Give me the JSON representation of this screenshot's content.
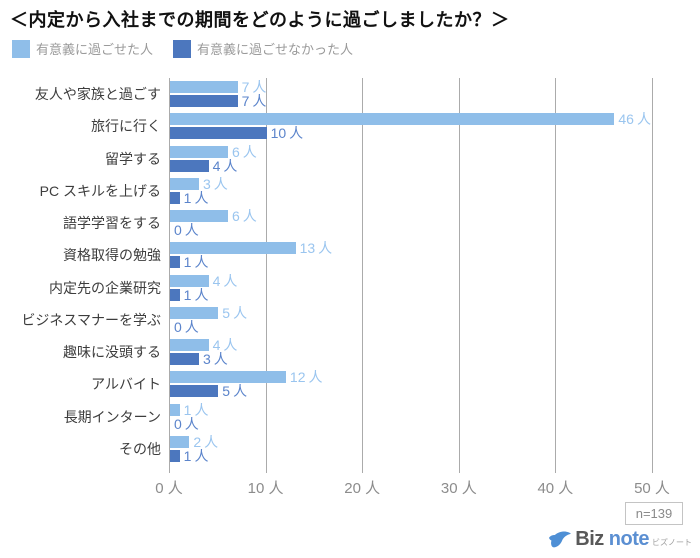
{
  "title": "＜内定から入社までの期間をどのように過ごしましたか？＞",
  "legend": [
    {
      "label": "有意義に過ごせた人",
      "color": "#8fbee9"
    },
    {
      "label": "有意義に過ごせなかった人",
      "color": "#4c77be"
    }
  ],
  "sample_size": "n=139",
  "logo": {
    "biz": "Biz",
    "note": "note",
    "subtext": "ビズノート",
    "bird_color": "#4e8fd5"
  },
  "colors": {
    "light_bar": "#8fbee9",
    "dark_bar": "#4c77be",
    "light_label": "#9ac5ef",
    "dark_label": "#5b84cb",
    "grid": "#ababab",
    "tick_text": "#8c8c8c",
    "category_text": "#3d3d3d"
  },
  "chart_data": {
    "type": "bar",
    "orientation": "horizontal",
    "title": "＜内定から入社までの期間をどのように過ごしましたか？＞",
    "unit": "人",
    "categories": [
      "友人や家族と過ごす",
      "旅行に行く",
      "留学する",
      "PC スキルを上げる",
      "語学学習をする",
      "資格取得の勉強",
      "内定先の企業研究",
      "ビジネスマナーを学ぶ",
      "趣味に没頭する",
      "アルバイト",
      "長期インターン",
      "その他"
    ],
    "series": [
      {
        "name": "有意義に過ごせた人",
        "values": [
          7,
          46,
          6,
          3,
          6,
          13,
          4,
          5,
          4,
          12,
          1,
          2
        ]
      },
      {
        "name": "有意義に過ごせなかった人",
        "values": [
          7,
          10,
          4,
          1,
          0,
          1,
          1,
          0,
          3,
          5,
          0,
          1
        ]
      }
    ],
    "xlabel": "",
    "ylabel": "",
    "xlim": [
      0,
      50
    ],
    "xticks": [
      0,
      10,
      20,
      30,
      40,
      50
    ],
    "grid": true,
    "legend_position": "top-left"
  }
}
